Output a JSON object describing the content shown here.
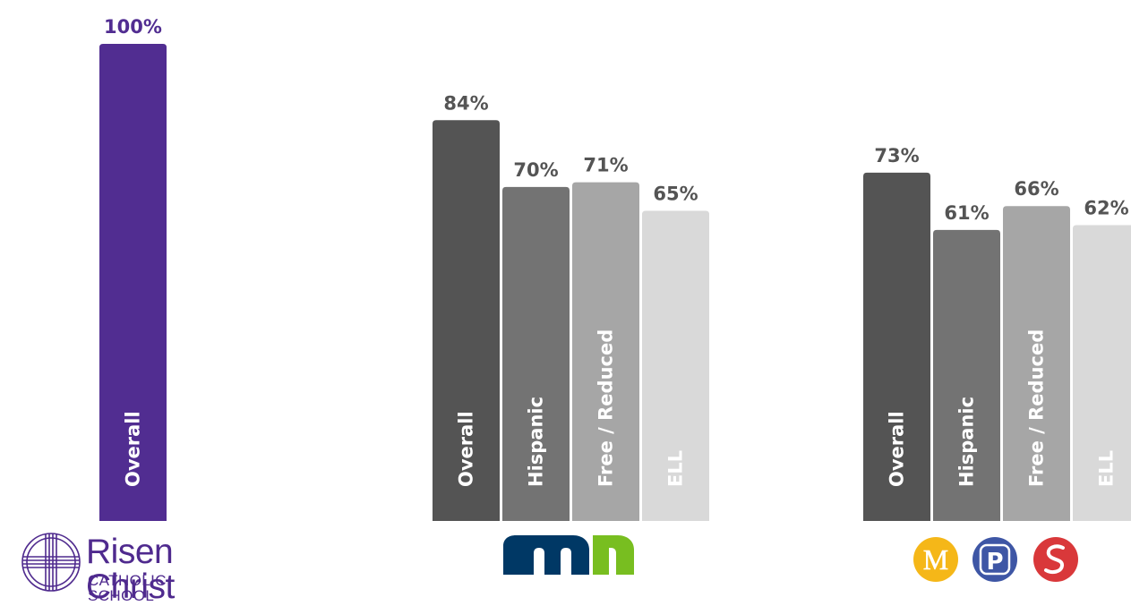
{
  "chart_data": [
    {
      "type": "bar",
      "group": "Risen Christ Catholic School",
      "categories": [
        "Overall"
      ],
      "values": [
        100
      ],
      "value_labels": [
        "100%"
      ],
      "colors": [
        "#512d91"
      ],
      "label_colors": [
        "#512d91"
      ],
      "category_text_colors": [
        "#ffffff"
      ],
      "ylim": [
        0,
        100
      ]
    },
    {
      "type": "bar",
      "group": "Minnesota",
      "categories": [
        "Overall",
        "Hispanic",
        "Free / Reduced",
        "ELL"
      ],
      "values": [
        84,
        70,
        71,
        65
      ],
      "value_labels": [
        "84%",
        "70%",
        "71%",
        "65%"
      ],
      "colors": [
        "#545454",
        "#737373",
        "#a6a6a6",
        "#d9d9d9"
      ],
      "label_colors": [
        "#545454",
        "#545454",
        "#545454",
        "#545454"
      ],
      "category_text_colors": [
        "#ffffff",
        "#ffffff",
        "#ffffff",
        "#ffffff"
      ],
      "ylim": [
        0,
        100
      ]
    },
    {
      "type": "bar",
      "group": "Minneapolis Public Schools",
      "categories": [
        "Overall",
        "Hispanic",
        "Free / Reduced",
        "ELL"
      ],
      "values": [
        73,
        61,
        66,
        62
      ],
      "value_labels": [
        "73%",
        "61%",
        "66%",
        "62%"
      ],
      "colors": [
        "#545454",
        "#737373",
        "#a6a6a6",
        "#d9d9d9"
      ],
      "label_colors": [
        "#545454",
        "#545454",
        "#545454",
        "#545454"
      ],
      "category_text_colors": [
        "#ffffff",
        "#ffffff",
        "#ffffff",
        "#ffffff"
      ],
      "ylim": [
        0,
        100
      ]
    }
  ],
  "logos": {
    "risen_christ": {
      "name": "Risen Christ",
      "subtitle": "CATHOLIC SCHOOL",
      "color": "#4f2a8e"
    },
    "minnesota": {
      "icon": "mn-logo-icon",
      "color_dark": "#003865",
      "color_light": "#78be20"
    },
    "mps": {
      "letters": [
        "M",
        "P",
        "S"
      ],
      "colors": [
        "#f5b718",
        "#3e56a5",
        "#d9383a"
      ]
    }
  }
}
